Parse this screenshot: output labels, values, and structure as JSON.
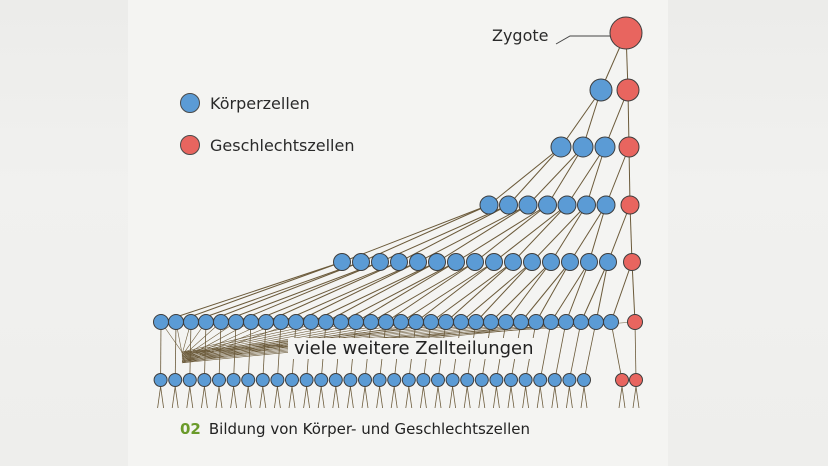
{
  "legend": {
    "body_cells": "Körperzellen",
    "sex_cells": "Geschlechtszellen"
  },
  "zygote_label": "Zygote",
  "many_divisions_label": "viele weitere Zellteilungen",
  "caption": {
    "number": "02",
    "text": "Bildung von Körper- und Geschlechtszellen"
  },
  "colors": {
    "body_cell": "#5b9bd5",
    "sex_cell": "#e8655f",
    "line": "#6b5a3a"
  },
  "generations": [
    {
      "body": 0,
      "sex": 1
    },
    {
      "body": 1,
      "sex": 1
    },
    {
      "body": 3,
      "sex": 1
    },
    {
      "body": 7,
      "sex": 1
    },
    {
      "body": 15,
      "sex": 1
    },
    {
      "body": 31,
      "sex": 1
    },
    {
      "body": 30,
      "sex": 2
    }
  ]
}
